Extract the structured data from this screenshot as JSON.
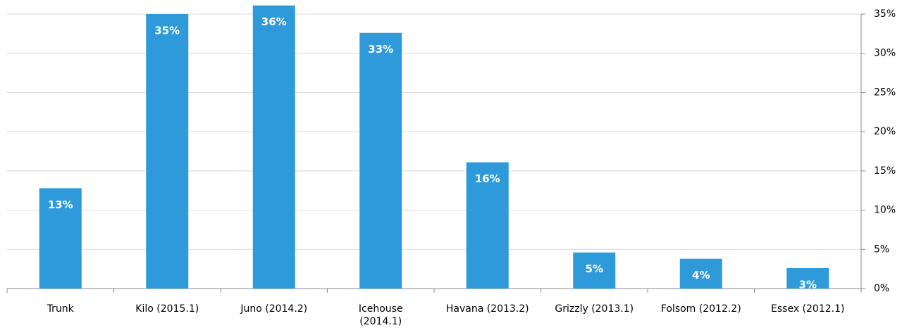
{
  "chart_data": {
    "type": "bar",
    "categories": [
      "Trunk",
      "Kilo (2015.1)",
      "Juno (2014.2)",
      "Icehouse\n(2014.1)",
      "Havana (2013.2)",
      "Grizzly (2013.1)",
      "Folsom (2012.2)",
      "Essex (2012.1)"
    ],
    "values": [
      12.8,
      35,
      36.1,
      32.6,
      16.1,
      4.6,
      3.8,
      2.6
    ],
    "value_labels": [
      "13%",
      "35%",
      "36%",
      "33%",
      "16%",
      "5%",
      "4%",
      "3%"
    ],
    "color": "#2f9ad9",
    "ylim": [
      0,
      35
    ],
    "yticks": [
      {
        "value": 0,
        "label": "0%"
      },
      {
        "value": 5,
        "label": "5%"
      },
      {
        "value": 10,
        "label": "10%"
      },
      {
        "value": 15,
        "label": "15%"
      },
      {
        "value": 20,
        "label": "20%"
      },
      {
        "value": 25,
        "label": "25%"
      },
      {
        "value": 30,
        "label": "30%"
      },
      {
        "value": 35,
        "label": "35%"
      }
    ],
    "grid": true
  }
}
